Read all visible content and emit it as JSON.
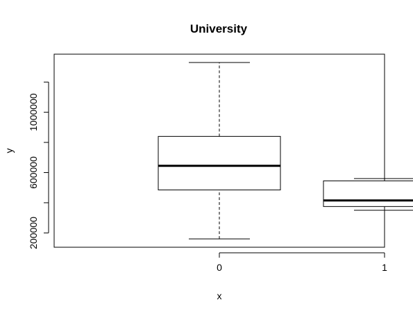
{
  "chart_data": {
    "type": "boxplot",
    "title": "University",
    "xlabel": "x",
    "ylabel": "y",
    "categories": [
      "0",
      "1"
    ],
    "boxes": [
      {
        "category": "0",
        "min": 160000,
        "q1": 485000,
        "median": 645000,
        "q3": 840000,
        "max": 1330000
      },
      {
        "category": "1",
        "min": 350000,
        "q1": 375000,
        "median": 415000,
        "q3": 545000,
        "max": 560000
      }
    ],
    "y_ticks": [
      200000,
      400000,
      600000,
      800000,
      1000000,
      1200000
    ],
    "y_tick_labels": [
      "200000",
      "",
      "600000",
      "",
      "1000000",
      ""
    ],
    "ylim": [
      105000,
      1385000
    ],
    "grid": false,
    "colors": {
      "line": "#000000",
      "box_fill": "#ffffff",
      "background": "#ffffff"
    }
  }
}
